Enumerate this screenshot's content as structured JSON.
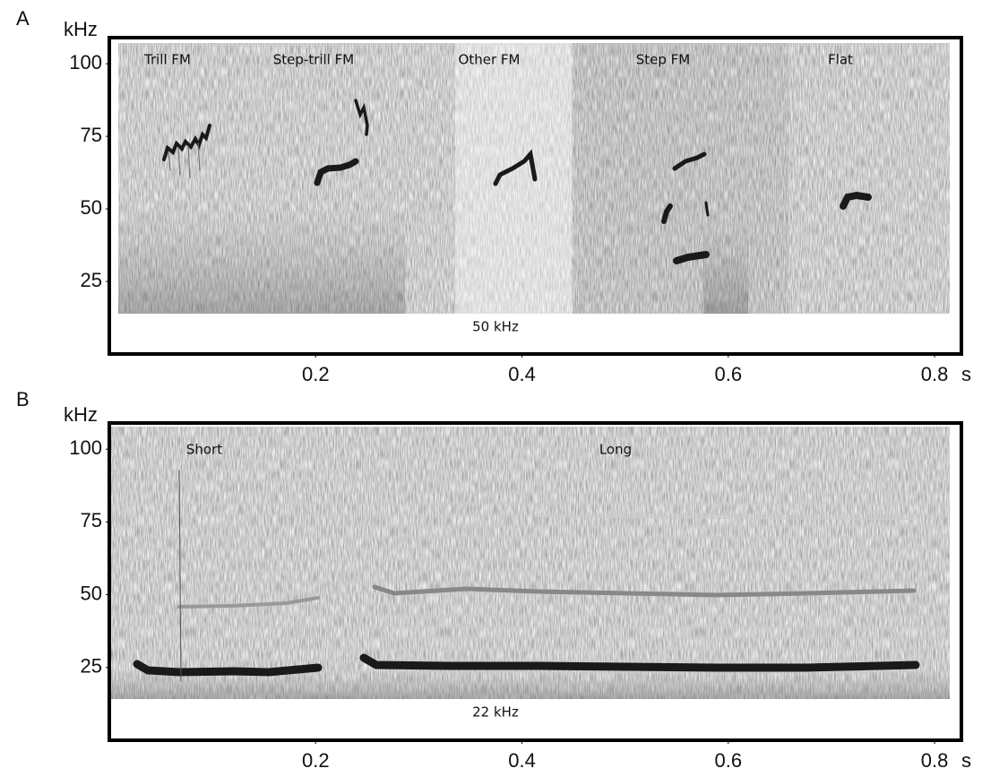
{
  "chart_data": [
    {
      "type": "spectrogram",
      "panel": "A",
      "y_label": "kHz",
      "x_unit": "s",
      "ylim": [
        0,
        109
      ],
      "yticks": [
        25,
        50,
        75,
        100
      ],
      "xlim": [
        0,
        0.826
      ],
      "xticks": [
        0.2,
        0.4,
        0.6,
        0.8
      ],
      "annotations": [
        "Trill FM",
        "Step-trill FM",
        "Other FM",
        "Step FM",
        "Flat"
      ],
      "bottom_label": "50 kHz"
    },
    {
      "type": "spectrogram",
      "panel": "B",
      "y_label": "kHz",
      "x_unit": "s",
      "ylim": [
        0,
        109
      ],
      "yticks": [
        25,
        50,
        75,
        100
      ],
      "xlim": [
        0,
        0.826
      ],
      "xticks": [
        0.2,
        0.4,
        0.6,
        0.8
      ],
      "annotations": [
        "Short",
        "Long"
      ],
      "bottom_label": "22 kHz"
    }
  ]
}
